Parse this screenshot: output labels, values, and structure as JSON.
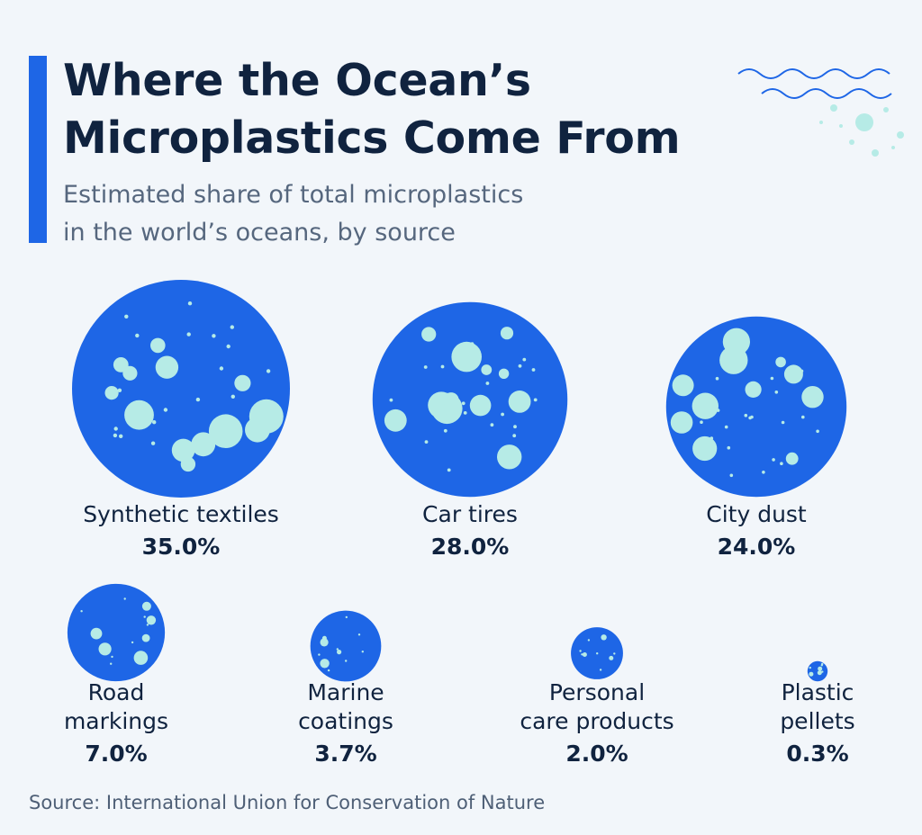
{
  "header": {
    "title_lines": [
      "Where the Ocean’s",
      "Microplastics Come From"
    ],
    "subtitle_lines": [
      "Estimated share of total microplastics",
      "in the world’s oceans, by source"
    ]
  },
  "chart_data": {
    "type": "bubble",
    "title": "Where the Ocean’s Microplastics Come From",
    "subtitle": "Estimated share of total microplastics in the world’s oceans, by source",
    "unit": "%",
    "categories": [
      {
        "label_lines": [
          "Synthetic textiles"
        ],
        "value": 35.0,
        "value_label": "35.0%"
      },
      {
        "label_lines": [
          "Car tires"
        ],
        "value": 28.0,
        "value_label": "28.0%"
      },
      {
        "label_lines": [
          "City dust"
        ],
        "value": 24.0,
        "value_label": "24.0%"
      },
      {
        "label_lines": [
          "Road",
          "markings"
        ],
        "value": 7.0,
        "value_label": "7.0%"
      },
      {
        "label_lines": [
          "Marine",
          "coatings"
        ],
        "value": 3.7,
        "value_label": "3.7%"
      },
      {
        "label_lines": [
          "Personal",
          "care products"
        ],
        "value": 2.0,
        "value_label": "2.0%"
      },
      {
        "label_lines": [
          "Plastic",
          "pellets"
        ],
        "value": 0.3,
        "value_label": "0.3%"
      }
    ],
    "colors": {
      "bubble": "#1e66e6",
      "dots": "#b6ebe6",
      "text": "#10233f"
    }
  },
  "footer": {
    "source": "Source: International Union for Conservation of Nature"
  },
  "decoration": {
    "icon": "ocean-waves-icon"
  }
}
